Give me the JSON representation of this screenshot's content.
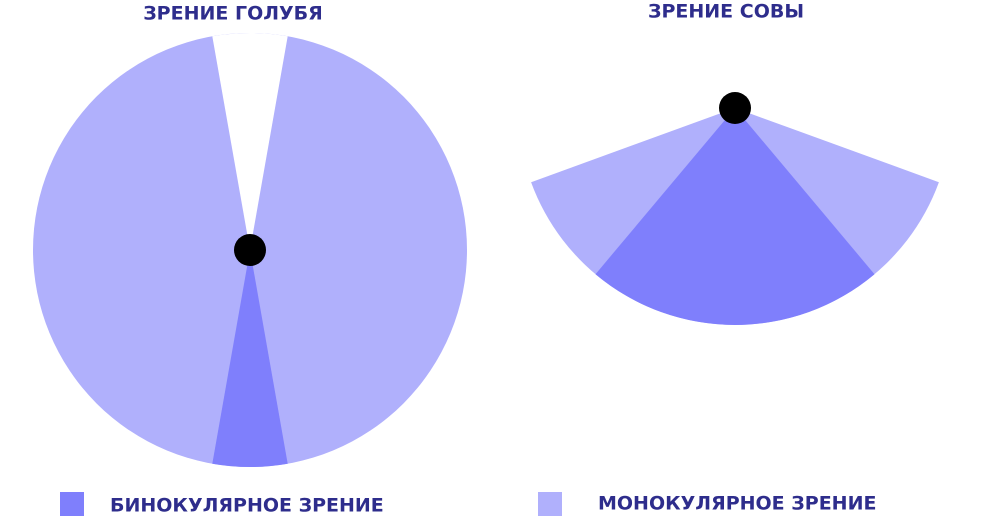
{
  "titles": {
    "pigeon": "ЗРЕНИЕ ГОЛУБЯ",
    "owl": "ЗРЕНИЕ СОВЫ"
  },
  "legend": {
    "binocular": "БИНОКУЛЯРНОЕ ЗРЕНИЕ",
    "monocular": "МОНОКУЛЯРНОЕ ЗРЕНИЕ"
  }
}
